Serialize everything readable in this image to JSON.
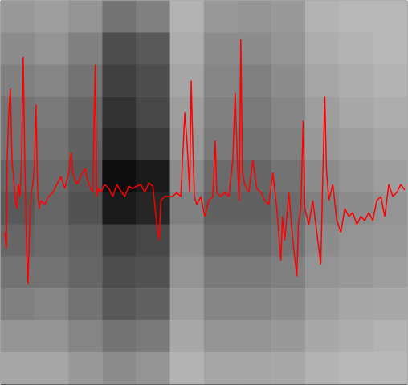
{
  "chart_data": {
    "type": "line",
    "annotations": [
      "14"
    ],
    "x": [
      5,
      7,
      8,
      10,
      12,
      14,
      16,
      18,
      20,
      22,
      24,
      26,
      28,
      30,
      32,
      34,
      36,
      38,
      40,
      42,
      44,
      46,
      48,
      50,
      55,
      60,
      65,
      70,
      75,
      80,
      85,
      88,
      90,
      95,
      100,
      105,
      110,
      115,
      118,
      120,
      122,
      125,
      130,
      135,
      140,
      145,
      150,
      155,
      160,
      165,
      170,
      175,
      180,
      185,
      190,
      195,
      198,
      200,
      205,
      210,
      215,
      220,
      225,
      230,
      233,
      236,
      238,
      240,
      242,
      245,
      250,
      255,
      260,
      265,
      268,
      270,
      275,
      280,
      285,
      290,
      293,
      296,
      298,
      300,
      302,
      305,
      310,
      315,
      320,
      325,
      330,
      335,
      340,
      345,
      350,
      352,
      355,
      360,
      365,
      370,
      372,
      375,
      378,
      380,
      385,
      390,
      395,
      400,
      402,
      405,
      407,
      410,
      415,
      420,
      425,
      430,
      435,
      440,
      445,
      450,
      455,
      460,
      465,
      470,
      475,
      480,
      485,
      490,
      495,
      500,
      505
    ],
    "values": [
      190,
      170,
      280,
      340,
      370,
      280,
      260,
      230,
      220,
      250,
      235,
      280,
      410,
      280,
      180,
      125,
      200,
      240,
      250,
      270,
      350,
      240,
      220,
      230,
      225,
      235,
      240,
      250,
      260,
      245,
      265,
      290,
      265,
      250,
      260,
      270,
      250,
      240,
      400,
      235,
      245,
      240,
      250,
      245,
      235,
      250,
      242,
      235,
      248,
      245,
      248,
      250,
      240,
      252,
      248,
      200,
      180,
      230,
      235,
      235,
      235,
      240,
      235,
      340,
      300,
      240,
      380,
      300,
      235,
      225,
      235,
      210,
      230,
      235,
      305,
      240,
      235,
      240,
      235,
      280,
      365,
      270,
      230,
      432,
      265,
      250,
      240,
      280,
      245,
      240,
      230,
      225,
      265,
      220,
      155,
      210,
      180,
      240,
      180,
      135,
      200,
      220,
      330,
      220,
      200,
      230,
      190,
      150,
      240,
      360,
      270,
      230,
      250,
      205,
      190,
      220,
      210,
      215,
      200,
      210,
      205,
      215,
      205,
      230,
      235,
      210,
      250,
      235,
      240,
      250,
      243
    ],
    "color": "#ff0000",
    "xlim": [
      0,
      508
    ],
    "ylim": [
      0,
      480
    ],
    "xticks": [],
    "yticks": [
      0,
      20,
      40,
      60,
      80,
      100,
      120,
      140,
      160,
      180,
      200,
      220,
      240,
      260,
      280,
      300,
      320,
      340,
      360,
      380,
      400,
      420,
      440,
      460,
      480
    ],
    "tick_labels": false,
    "grid": false,
    "cells": [
      [
        60,
        62,
        58,
        45,
        50,
        70,
        60,
        58,
        60,
        70,
        72,
        72
      ],
      [
        55,
        58,
        50,
        30,
        35,
        68,
        55,
        55,
        58,
        68,
        70,
        72
      ],
      [
        50,
        52,
        45,
        25,
        30,
        65,
        52,
        50,
        55,
        65,
        68,
        70
      ],
      [
        45,
        48,
        40,
        20,
        28,
        62,
        50,
        48,
        52,
        62,
        66,
        68
      ],
      [
        45,
        45,
        38,
        15,
        22,
        60,
        48,
        45,
        50,
        60,
        62,
        65
      ],
      [
        40,
        42,
        35,
        5,
        10,
        55,
        42,
        40,
        45,
        55,
        58,
        62
      ],
      [
        35,
        40,
        32,
        10,
        15,
        50,
        38,
        38,
        42,
        50,
        55,
        58
      ],
      [
        40,
        42,
        38,
        25,
        28,
        55,
        42,
        42,
        45,
        55,
        58,
        60
      ],
      [
        45,
        45,
        40,
        30,
        32,
        58,
        48,
        48,
        50,
        58,
        60,
        62
      ],
      [
        50,
        52,
        45,
        35,
        38,
        62,
        52,
        52,
        55,
        62,
        65,
        66
      ],
      [
        58,
        58,
        52,
        45,
        48,
        66,
        58,
        58,
        60,
        66,
        68,
        70
      ],
      [
        65,
        65,
        60,
        55,
        58,
        70,
        65,
        65,
        66,
        70,
        72,
        72
      ]
    ],
    "color_range": [
      0,
      100
    ]
  }
}
